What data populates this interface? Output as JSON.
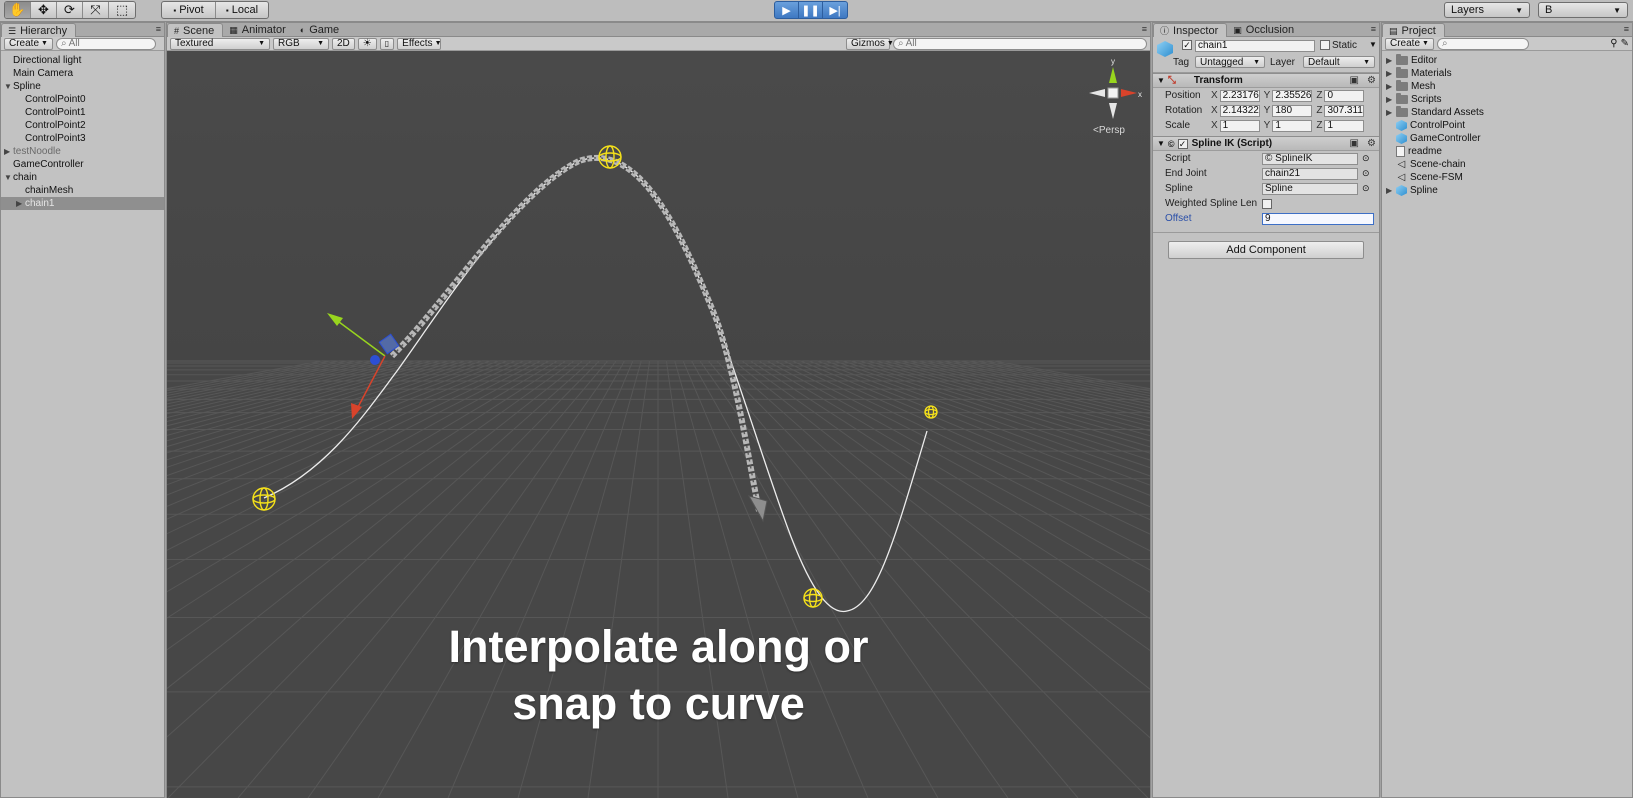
{
  "toolbar": {
    "tools": [
      "hand-tool",
      "move-tool",
      "rotate-tool",
      "scale-tool",
      "rect-tool"
    ],
    "pivot_label": "Pivot",
    "local_label": "Local",
    "layers_label": "Layers",
    "layout_label": "B"
  },
  "hierarchy": {
    "tab_label": "Hierarchy",
    "create_label": "Create",
    "search_placeholder": "All",
    "items": [
      {
        "label": "Directional light",
        "indent": 0,
        "fold": "",
        "style": ""
      },
      {
        "label": "Main Camera",
        "indent": 0,
        "fold": "",
        "style": ""
      },
      {
        "label": "Spline",
        "indent": 0,
        "fold": "open",
        "style": ""
      },
      {
        "label": "ControlPoint0",
        "indent": 1,
        "fold": "",
        "style": ""
      },
      {
        "label": "ControlPoint1",
        "indent": 1,
        "fold": "",
        "style": ""
      },
      {
        "label": "ControlPoint2",
        "indent": 1,
        "fold": "",
        "style": ""
      },
      {
        "label": "ControlPoint3",
        "indent": 1,
        "fold": "",
        "style": ""
      },
      {
        "label": "testNoodle",
        "indent": 0,
        "fold": "closed",
        "style": "disabled"
      },
      {
        "label": "GameController",
        "indent": 0,
        "fold": "",
        "style": ""
      },
      {
        "label": "chain",
        "indent": 0,
        "fold": "open",
        "style": ""
      },
      {
        "label": "chainMesh",
        "indent": 1,
        "fold": "",
        "style": ""
      },
      {
        "label": "chain1",
        "indent": 1,
        "fold": "closed",
        "style": "selected"
      }
    ]
  },
  "scene": {
    "tabs": [
      "Scene",
      "Animator",
      "Game"
    ],
    "shading_mode": "Textured",
    "render_mode": "RGB",
    "mode_2d": "2D",
    "effects_label": "Effects",
    "gizmos_label": "Gizmos",
    "search_placeholder": "All",
    "persp_label": "Persp",
    "axis_x": "x",
    "axis_y": "y",
    "overlay_line1": "Interpolate along or",
    "overlay_line2": "snap to curve",
    "colors": {
      "spline": "#ffffff",
      "handles": "#f5e11a",
      "chain": "#cfcfcf"
    }
  },
  "inspector": {
    "tabs": [
      "Inspector",
      "Occlusion"
    ],
    "object_name": "chain1",
    "static_label": "Static",
    "tag_label": "Tag",
    "tag_value": "Untagged",
    "layer_label": "Layer",
    "layer_value": "Default",
    "transform": {
      "title": "Transform",
      "position_label": "Position",
      "position": [
        "2.23176",
        "2.35526",
        "0"
      ],
      "rotation_label": "Rotation",
      "rotation": [
        "2.14322",
        "180",
        "307.311"
      ],
      "scale_label": "Scale",
      "scale": [
        "1",
        "1",
        "1"
      ]
    },
    "spline_ik": {
      "title": "Spline IK (Script)",
      "script_label": "Script",
      "script_value": "SplineIK",
      "end_joint_label": "End Joint",
      "end_joint_value": "chain21",
      "spline_label": "Spline",
      "spline_value": "Spline",
      "weighted_label": "Weighted Spline Len",
      "offset_label": "Offset",
      "offset_value": "9"
    },
    "add_component_label": "Add Component"
  },
  "project": {
    "tab_label": "Project",
    "create_label": "Create",
    "items": [
      {
        "label": "Editor",
        "icon": "folder-icon",
        "fold": true
      },
      {
        "label": "Materials",
        "icon": "folder-icon",
        "fold": true
      },
      {
        "label": "Mesh",
        "icon": "folder-icon",
        "fold": true
      },
      {
        "label": "Scripts",
        "icon": "folder-icon",
        "fold": true
      },
      {
        "label": "Standard Assets",
        "icon": "folder-icon",
        "fold": true
      },
      {
        "label": "ControlPoint",
        "icon": "prefab-icon",
        "fold": false
      },
      {
        "label": "GameController",
        "icon": "prefab-icon",
        "fold": false
      },
      {
        "label": "readme",
        "icon": "text-file-icon",
        "fold": false
      },
      {
        "label": "Scene-chain",
        "icon": "unity-scene-icon",
        "fold": false
      },
      {
        "label": "Scene-FSM",
        "icon": "unity-scene-icon",
        "fold": false
      },
      {
        "label": "Spline",
        "icon": "prefab-icon",
        "fold": true
      }
    ]
  }
}
